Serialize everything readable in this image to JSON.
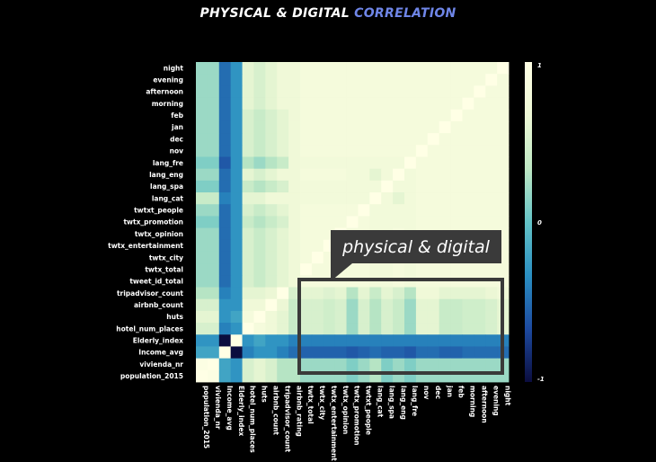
{
  "title": {
    "main": "PHYSICAL  & DIGITAL ",
    "accent": "CORRELATION"
  },
  "callout": {
    "label": "physical & digital"
  },
  "colors": {
    "background": "#000000",
    "title_accent": "#6f86e8",
    "callout_box": "#3a3a3a",
    "colormap": [
      "#0b0d3f",
      "#1d4aa0",
      "#2a8fc2",
      "#64c3c6",
      "#bfe8c4",
      "#eef8d6",
      "#ffffe5"
    ]
  },
  "chart_data": {
    "type": "heatmap",
    "title": "PHYSICAL  & DIGITAL CORRELATION",
    "row_labels": [
      "night",
      "evening",
      "afternoon",
      "morning",
      "feb",
      "jan",
      "dec",
      "nov",
      "lang_fre",
      "lang_eng",
      "lang_spa",
      "lang_cat",
      "twtxt_people",
      "twtx_promotion",
      "twtx_opinion",
      "twtx_entertainment",
      "twtx_city",
      "twtx_total",
      "tweet_id_total",
      "tripadvisor_count",
      "airbnb_count",
      "huts",
      "hotel_num_places",
      "Elderly_index",
      "Income_avg",
      "vivienda_nr",
      "population_2015"
    ],
    "col_labels": [
      "population_2015",
      "vivienda_nr",
      "Income_avg",
      "Elderly_index",
      "hotel_num_places",
      "huts",
      "airbnb_count",
      "tripadvisor_count",
      "airbnb_rating",
      "twtx_total",
      "twtx_city",
      "twtx_entertainment",
      "twtx_opinion",
      "twtx_promotion",
      "twtxt_people",
      "lang_cat",
      "lang_spa",
      "lang_eng",
      "lang_fre",
      "nov",
      "dec",
      "jan",
      "feb",
      "morning",
      "afternoon",
      "evening",
      "night"
    ],
    "colorbar_ticks": [
      "1",
      "0",
      "-1"
    ],
    "vmin": -1,
    "vmax": 1,
    "values": [
      [
        0.2,
        0.2,
        -0.5,
        -0.3,
        0.6,
        0.5,
        0.6,
        0.7,
        0.7,
        0.8,
        0.8,
        0.8,
        0.8,
        0.8,
        0.8,
        0.8,
        0.8,
        0.8,
        0.8,
        0.8,
        0.8,
        0.8,
        0.8,
        0.8,
        0.8,
        0.8,
        1.0
      ],
      [
        0.2,
        0.2,
        -0.5,
        -0.3,
        0.6,
        0.5,
        0.6,
        0.7,
        0.7,
        0.8,
        0.8,
        0.8,
        0.8,
        0.8,
        0.8,
        0.8,
        0.8,
        0.8,
        0.8,
        0.8,
        0.8,
        0.8,
        0.8,
        0.8,
        0.8,
        1.0,
        0.8
      ],
      [
        0.2,
        0.2,
        -0.5,
        -0.3,
        0.6,
        0.5,
        0.6,
        0.7,
        0.7,
        0.8,
        0.8,
        0.8,
        0.8,
        0.8,
        0.8,
        0.8,
        0.8,
        0.8,
        0.8,
        0.8,
        0.8,
        0.8,
        0.8,
        0.8,
        1.0,
        0.8,
        0.8
      ],
      [
        0.2,
        0.2,
        -0.5,
        -0.3,
        0.6,
        0.5,
        0.6,
        0.7,
        0.7,
        0.8,
        0.8,
        0.8,
        0.8,
        0.8,
        0.8,
        0.8,
        0.8,
        0.8,
        0.8,
        0.8,
        0.8,
        0.8,
        0.8,
        1.0,
        0.8,
        0.8,
        0.8
      ],
      [
        0.2,
        0.2,
        -0.5,
        -0.3,
        0.5,
        0.4,
        0.5,
        0.6,
        0.7,
        0.8,
        0.8,
        0.8,
        0.8,
        0.8,
        0.8,
        0.8,
        0.8,
        0.8,
        0.8,
        0.8,
        0.8,
        0.8,
        1.0,
        0.8,
        0.8,
        0.8,
        0.8
      ],
      [
        0.2,
        0.2,
        -0.5,
        -0.3,
        0.5,
        0.4,
        0.5,
        0.6,
        0.7,
        0.8,
        0.8,
        0.8,
        0.8,
        0.8,
        0.8,
        0.8,
        0.8,
        0.8,
        0.8,
        0.8,
        0.8,
        1.0,
        0.8,
        0.8,
        0.8,
        0.8,
        0.8
      ],
      [
        0.2,
        0.2,
        -0.5,
        -0.3,
        0.5,
        0.4,
        0.5,
        0.6,
        0.7,
        0.8,
        0.8,
        0.8,
        0.8,
        0.8,
        0.8,
        0.8,
        0.8,
        0.8,
        0.8,
        0.8,
        1.0,
        0.8,
        0.8,
        0.8,
        0.8,
        0.8,
        0.8
      ],
      [
        0.2,
        0.2,
        -0.5,
        -0.3,
        0.5,
        0.4,
        0.5,
        0.6,
        0.7,
        0.8,
        0.8,
        0.8,
        0.8,
        0.8,
        0.8,
        0.8,
        0.8,
        0.8,
        0.8,
        1.0,
        0.8,
        0.8,
        0.8,
        0.8,
        0.8,
        0.8,
        0.8
      ],
      [
        0.1,
        0.1,
        -0.6,
        -0.3,
        0.3,
        0.2,
        0.3,
        0.4,
        0.7,
        0.75,
        0.75,
        0.75,
        0.75,
        0.75,
        0.75,
        0.75,
        0.75,
        0.75,
        1.0,
        0.8,
        0.8,
        0.8,
        0.8,
        0.8,
        0.8,
        0.8,
        0.8
      ],
      [
        0.2,
        0.2,
        -0.5,
        -0.3,
        0.6,
        0.5,
        0.6,
        0.7,
        0.7,
        0.8,
        0.8,
        0.8,
        0.8,
        0.75,
        0.75,
        0.6,
        0.75,
        1.0,
        0.75,
        0.8,
        0.8,
        0.8,
        0.8,
        0.8,
        0.8,
        0.8,
        0.8
      ],
      [
        0.1,
        0.1,
        -0.5,
        -0.3,
        0.4,
        0.3,
        0.4,
        0.5,
        0.7,
        0.75,
        0.75,
        0.75,
        0.75,
        0.75,
        0.75,
        0.75,
        1.0,
        0.75,
        0.75,
        0.8,
        0.8,
        0.8,
        0.8,
        0.8,
        0.8,
        0.8,
        0.8
      ],
      [
        0.4,
        0.4,
        -0.4,
        -0.3,
        0.6,
        0.6,
        0.7,
        0.7,
        0.7,
        0.75,
        0.75,
        0.75,
        0.75,
        0.75,
        0.75,
        1.0,
        0.75,
        0.6,
        0.75,
        0.8,
        0.8,
        0.8,
        0.8,
        0.8,
        0.8,
        0.8,
        0.8
      ],
      [
        0.2,
        0.2,
        -0.5,
        -0.3,
        0.5,
        0.4,
        0.5,
        0.6,
        0.7,
        0.8,
        0.8,
        0.8,
        0.8,
        0.8,
        1.0,
        0.75,
        0.75,
        0.75,
        0.75,
        0.8,
        0.8,
        0.8,
        0.8,
        0.8,
        0.8,
        0.8,
        0.8
      ],
      [
        0.1,
        0.1,
        -0.5,
        -0.3,
        0.4,
        0.3,
        0.4,
        0.5,
        0.7,
        0.8,
        0.8,
        0.8,
        0.8,
        1.0,
        0.8,
        0.75,
        0.75,
        0.75,
        0.75,
        0.8,
        0.8,
        0.8,
        0.8,
        0.8,
        0.8,
        0.8,
        0.8
      ],
      [
        0.2,
        0.2,
        -0.5,
        -0.3,
        0.5,
        0.4,
        0.5,
        0.6,
        0.7,
        0.8,
        0.8,
        0.8,
        1.0,
        0.8,
        0.8,
        0.75,
        0.75,
        0.8,
        0.75,
        0.8,
        0.8,
        0.8,
        0.8,
        0.8,
        0.8,
        0.8,
        0.8
      ],
      [
        0.2,
        0.2,
        -0.5,
        -0.3,
        0.5,
        0.4,
        0.5,
        0.6,
        0.7,
        0.8,
        0.8,
        1.0,
        0.8,
        0.8,
        0.8,
        0.75,
        0.75,
        0.8,
        0.75,
        0.8,
        0.8,
        0.8,
        0.8,
        0.8,
        0.8,
        0.8,
        0.8
      ],
      [
        0.2,
        0.2,
        -0.5,
        -0.3,
        0.5,
        0.4,
        0.5,
        0.6,
        0.7,
        0.8,
        1.0,
        0.8,
        0.8,
        0.8,
        0.8,
        0.75,
        0.75,
        0.8,
        0.75,
        0.8,
        0.8,
        0.8,
        0.8,
        0.8,
        0.8,
        0.8,
        0.8
      ],
      [
        0.2,
        0.2,
        -0.5,
        -0.3,
        0.5,
        0.4,
        0.5,
        0.6,
        0.7,
        1.0,
        0.8,
        0.8,
        0.8,
        0.8,
        0.8,
        0.75,
        0.75,
        0.8,
        0.75,
        0.8,
        0.8,
        0.8,
        0.8,
        0.8,
        0.8,
        0.8,
        0.8
      ],
      [
        0.2,
        0.2,
        -0.5,
        -0.3,
        0.5,
        0.4,
        0.5,
        0.6,
        0.7,
        0.8,
        0.8,
        0.8,
        0.8,
        0.8,
        0.8,
        0.75,
        0.75,
        0.8,
        0.75,
        0.8,
        0.8,
        0.8,
        0.8,
        0.8,
        0.8,
        0.8,
        0.8
      ],
      [
        0.3,
        0.3,
        -0.4,
        -0.3,
        0.6,
        0.6,
        0.65,
        1.0,
        0.5,
        0.6,
        0.6,
        0.55,
        0.6,
        0.3,
        0.6,
        0.4,
        0.6,
        0.5,
        0.3,
        0.7,
        0.7,
        0.6,
        0.6,
        0.6,
        0.6,
        0.65,
        0.7
      ],
      [
        0.5,
        0.5,
        -0.3,
        -0.3,
        0.7,
        0.7,
        1.0,
        0.65,
        0.4,
        0.5,
        0.5,
        0.45,
        0.5,
        0.2,
        0.5,
        0.3,
        0.5,
        0.4,
        0.2,
        0.6,
        0.6,
        0.4,
        0.4,
        0.45,
        0.45,
        0.5,
        0.6
      ],
      [
        0.6,
        0.6,
        -0.3,
        -0.2,
        0.8,
        1.0,
        0.7,
        0.6,
        0.4,
        0.5,
        0.5,
        0.45,
        0.5,
        0.2,
        0.5,
        0.3,
        0.5,
        0.4,
        0.2,
        0.6,
        0.6,
        0.4,
        0.4,
        0.45,
        0.45,
        0.5,
        0.6
      ],
      [
        0.5,
        0.5,
        -0.4,
        -0.3,
        1.0,
        0.8,
        0.7,
        0.6,
        0.4,
        0.5,
        0.5,
        0.45,
        0.5,
        0.2,
        0.5,
        0.3,
        0.5,
        0.4,
        0.2,
        0.6,
        0.6,
        0.4,
        0.4,
        0.45,
        0.45,
        0.5,
        0.6
      ],
      [
        -0.3,
        -0.3,
        -1.0,
        1.0,
        -0.3,
        -0.2,
        -0.3,
        -0.3,
        -0.4,
        -0.4,
        -0.4,
        -0.4,
        -0.4,
        -0.4,
        -0.4,
        -0.4,
        -0.4,
        -0.4,
        -0.4,
        -0.4,
        -0.4,
        -0.4,
        -0.4,
        -0.4,
        -0.4,
        -0.4,
        -0.4
      ],
      [
        -0.2,
        -0.2,
        1.0,
        -1.0,
        -0.4,
        -0.3,
        -0.3,
        -0.4,
        -0.5,
        -0.55,
        -0.55,
        -0.55,
        -0.55,
        -0.6,
        -0.55,
        -0.5,
        -0.55,
        -0.55,
        -0.6,
        -0.5,
        -0.5,
        -0.55,
        -0.55,
        -0.5,
        -0.5,
        -0.5,
        -0.5
      ],
      [
        0.95,
        1.0,
        -0.2,
        -0.3,
        0.5,
        0.6,
        0.5,
        0.3,
        0.3,
        0.2,
        0.2,
        0.2,
        0.2,
        0.1,
        0.2,
        0.3,
        0.1,
        0.2,
        0.1,
        0.2,
        0.2,
        0.2,
        0.2,
        0.2,
        0.2,
        0.2,
        0.2
      ],
      [
        1.0,
        0.95,
        -0.2,
        -0.3,
        0.5,
        0.6,
        0.5,
        0.3,
        0.3,
        0.2,
        0.2,
        0.2,
        0.2,
        0.1,
        0.2,
        0.3,
        0.1,
        0.2,
        0.1,
        0.2,
        0.2,
        0.2,
        0.2,
        0.2,
        0.2,
        0.2,
        0.2
      ]
    ]
  }
}
